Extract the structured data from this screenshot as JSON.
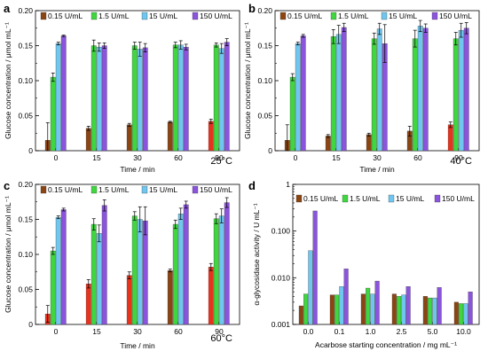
{
  "colors": {
    "bar_dark": "#8B4513",
    "bar_red": "#e8331c",
    "bar_green": "#3fd63f",
    "bar_blue": "#6fc6ee",
    "bar_purple": "#8a54dc"
  },
  "chart_data": [
    {
      "panel_label": "a",
      "type": "bar",
      "corner_text": "25°C",
      "xlabel": "Time / min",
      "ylabel": "Glucose concentration / μmol mL⁻¹",
      "categories": [
        "0",
        "15",
        "30",
        "60",
        "90"
      ],
      "ylim": [
        0,
        0.2
      ],
      "yticks": [
        "0",
        "0.05",
        "0.10",
        "0.15",
        "0.20"
      ],
      "legend": [
        "0.15 U/mL",
        "1.5 U/mL",
        "15 U/mL",
        "150 U/mL"
      ],
      "series": [
        {
          "name": "0.15 U/mL",
          "values": [
            0.015,
            0.032,
            0.037,
            0.041,
            0.042
          ],
          "errors": [
            0.025,
            0.003,
            0.002,
            0.001,
            0.003
          ]
        },
        {
          "name": "1.5 U/mL",
          "values": [
            0.105,
            0.15,
            0.15,
            0.151,
            0.151
          ],
          "errors": [
            0.006,
            0.008,
            0.005,
            0.004,
            0.003
          ]
        },
        {
          "name": "15 U/mL",
          "values": [
            0.153,
            0.148,
            0.145,
            0.151,
            0.146
          ],
          "errors": [
            0.002,
            0.006,
            0.01,
            0.006,
            0.007
          ]
        },
        {
          "name": "150 U/mL",
          "values": [
            0.164,
            0.15,
            0.147,
            0.148,
            0.155
          ],
          "errors": [
            0.001,
            0.004,
            0.006,
            0.004,
            0.005
          ]
        }
      ]
    },
    {
      "panel_label": "b",
      "type": "bar",
      "corner_text": "40°C",
      "xlabel": "Time / min",
      "ylabel": "Glucose concentration / μmol mL⁻¹",
      "categories": [
        "0",
        "15",
        "30",
        "60",
        "90"
      ],
      "ylim": [
        0,
        0.2
      ],
      "yticks": [
        "0",
        "0.05",
        "0.10",
        "0.15",
        "0.20"
      ],
      "legend": [
        "0.15 U/mL",
        "1.5 U/mL",
        "15 U/mL",
        "150 U/mL"
      ],
      "series": [
        {
          "name": "0.15 U/mL",
          "values": [
            0.015,
            0.021,
            0.023,
            0.028,
            0.037
          ],
          "errors": [
            0.022,
            0.002,
            0.002,
            0.007,
            0.004
          ]
        },
        {
          "name": "1.5 U/mL",
          "values": [
            0.105,
            0.163,
            0.16,
            0.16,
            0.16
          ],
          "errors": [
            0.005,
            0.01,
            0.008,
            0.012,
            0.009
          ]
        },
        {
          "name": "15 U/mL",
          "values": [
            0.153,
            0.166,
            0.174,
            0.178,
            0.172
          ],
          "errors": [
            0.002,
            0.013,
            0.008,
            0.008,
            0.01
          ]
        },
        {
          "name": "150 U/mL",
          "values": [
            0.164,
            0.176,
            0.153,
            0.175,
            0.175
          ],
          "errors": [
            0.002,
            0.006,
            0.027,
            0.006,
            0.008
          ]
        }
      ]
    },
    {
      "panel_label": "c",
      "type": "bar",
      "corner_text": "60°C",
      "xlabel": "Time / min",
      "ylabel": "Glucose concentration / μmol mL⁻¹",
      "categories": [
        "0",
        "15",
        "30",
        "60",
        "90"
      ],
      "ylim": [
        0,
        0.2
      ],
      "yticks": [
        "0",
        "0.05",
        "0.10",
        "0.15",
        "0.20"
      ],
      "legend": [
        "0.15 U/mL",
        "1.5 U/mL",
        "15 U/mL",
        "150 U/mL"
      ],
      "series": [
        {
          "name": "0.15 U/mL",
          "values": [
            0.015,
            0.058,
            0.07,
            0.077,
            0.082
          ],
          "errors": [
            0.012,
            0.006,
            0.005,
            0.002,
            0.005
          ]
        },
        {
          "name": "1.5 U/mL",
          "values": [
            0.105,
            0.143,
            0.155,
            0.143,
            0.151
          ],
          "errors": [
            0.005,
            0.008,
            0.006,
            0.006,
            0.007
          ]
        },
        {
          "name": "15 U/mL",
          "values": [
            0.153,
            0.13,
            0.15,
            0.158,
            0.155
          ],
          "errors": [
            0.002,
            0.012,
            0.018,
            0.008,
            0.01
          ]
        },
        {
          "name": "150 U/mL",
          "values": [
            0.164,
            0.17,
            0.148,
            0.171,
            0.174
          ],
          "errors": [
            0.002,
            0.008,
            0.02,
            0.005,
            0.007
          ]
        }
      ]
    },
    {
      "panel_label": "d",
      "type": "bar",
      "corner_text": "",
      "xlabel": "Acarbose starting concentration / mg mL⁻¹",
      "ylabel": "α-glycosidase activity / U mL⁻¹",
      "categories": [
        "0.0",
        "0.1",
        "1.0",
        "2.5",
        "5.0",
        "10.0"
      ],
      "yscale": "log",
      "ylim": [
        0.001,
        1
      ],
      "yticks": [
        "0.001",
        "0.010",
        "0.100",
        "1"
      ],
      "legend": [
        "0.15 U/mL",
        "1.5 U/mL",
        "15 U/mL",
        "150 U/mL"
      ],
      "series": [
        {
          "name": "0.15 U/mL",
          "values": [
            0.0025,
            0.0043,
            0.0045,
            0.0045,
            0.004,
            0.003
          ]
        },
        {
          "name": "1.5 U/mL",
          "values": [
            0.0045,
            0.0043,
            0.006,
            0.004,
            0.0037,
            0.0028
          ]
        },
        {
          "name": "15 U/mL",
          "values": [
            0.038,
            0.0065,
            0.0045,
            0.0043,
            0.0037,
            0.0028
          ]
        },
        {
          "name": "150 U/mL",
          "values": [
            0.27,
            0.0155,
            0.0085,
            0.0065,
            0.0062,
            0.005
          ]
        }
      ]
    }
  ]
}
